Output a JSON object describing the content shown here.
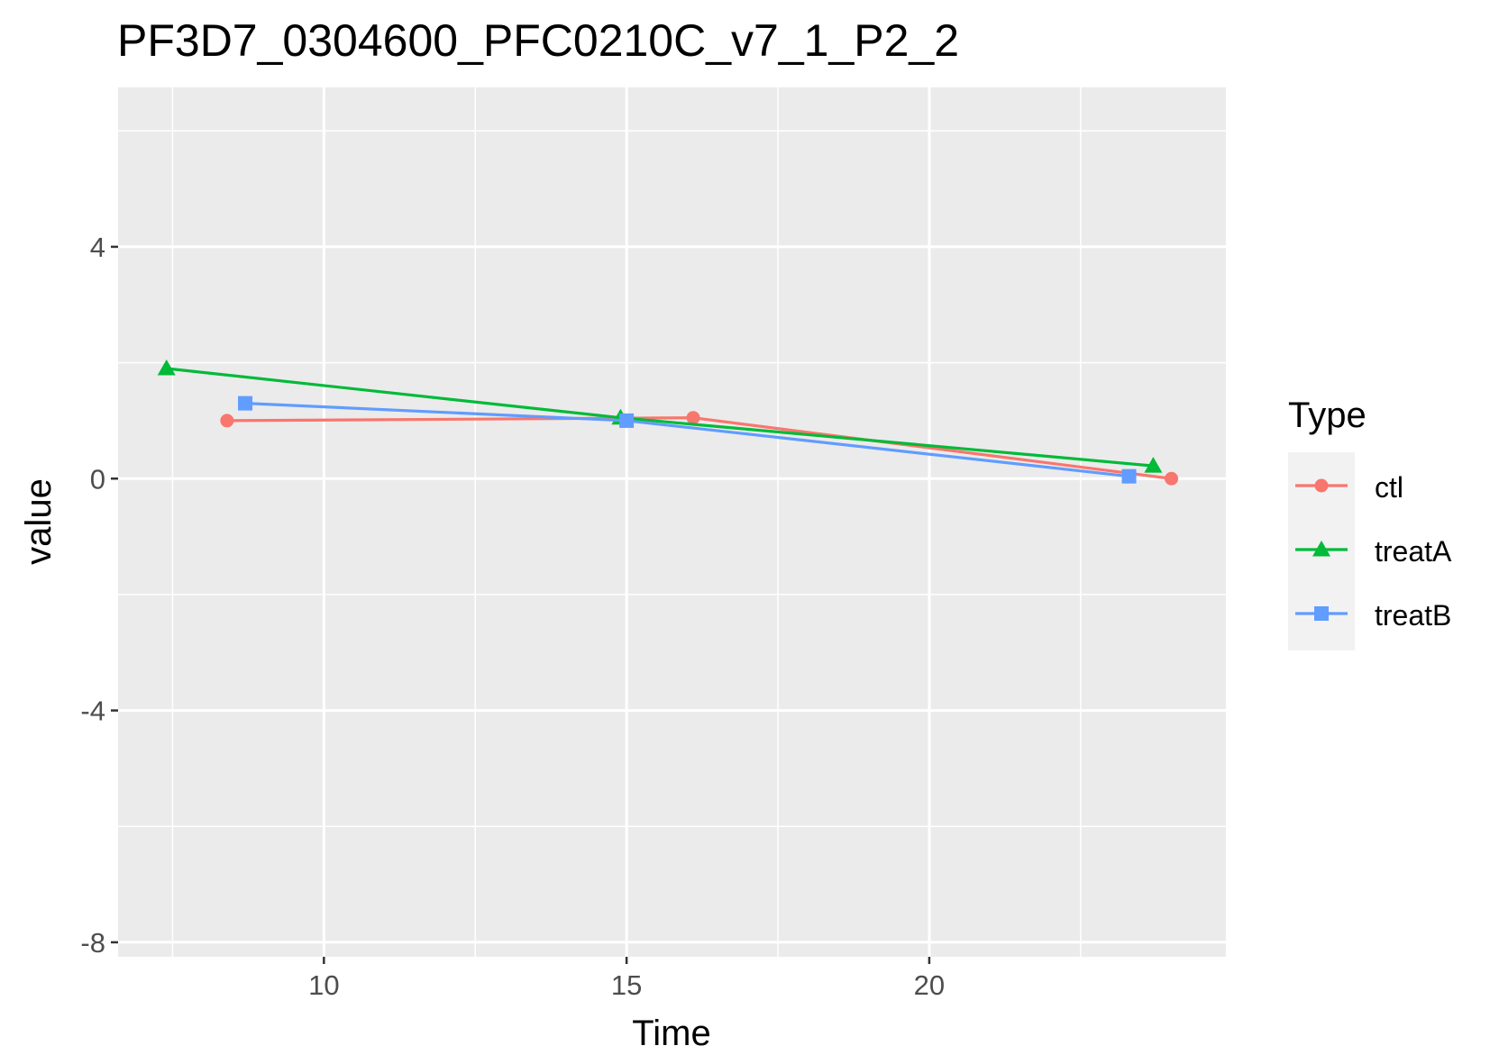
{
  "chart_data": {
    "type": "line",
    "title": "PF3D7_0304600_PFC0210C_v7_1_P2_2",
    "xlabel": "Time",
    "ylabel": "value",
    "xlim": [
      6.6,
      24.9
    ],
    "ylim": [
      -8.25,
      6.75
    ],
    "x_ticks": [
      10,
      15,
      20
    ],
    "x_tick_labels": [
      "10",
      "15",
      "20"
    ],
    "y_ticks": [
      -8,
      -4,
      0,
      4
    ],
    "y_tick_labels": [
      "-8",
      "-4",
      "0",
      "4"
    ],
    "grid": true,
    "legend": {
      "title": "Type",
      "position": "right"
    },
    "series": [
      {
        "name": "ctl",
        "color": "#F8766D",
        "marker": "circle",
        "points": [
          {
            "x": 8.4,
            "y": 1.0
          },
          {
            "x": 16.1,
            "y": 1.05
          },
          {
            "x": 24.0,
            "y": 0.0
          }
        ]
      },
      {
        "name": "treatA",
        "color": "#00BA38",
        "marker": "triangle",
        "points": [
          {
            "x": 7.4,
            "y": 1.9
          },
          {
            "x": 14.9,
            "y": 1.05
          },
          {
            "x": 23.7,
            "y": 0.22
          }
        ]
      },
      {
        "name": "treatB",
        "color": "#619CFF",
        "marker": "square",
        "points": [
          {
            "x": 8.7,
            "y": 1.3
          },
          {
            "x": 15.0,
            "y": 1.0
          },
          {
            "x": 23.3,
            "y": 0.04
          }
        ]
      }
    ]
  }
}
